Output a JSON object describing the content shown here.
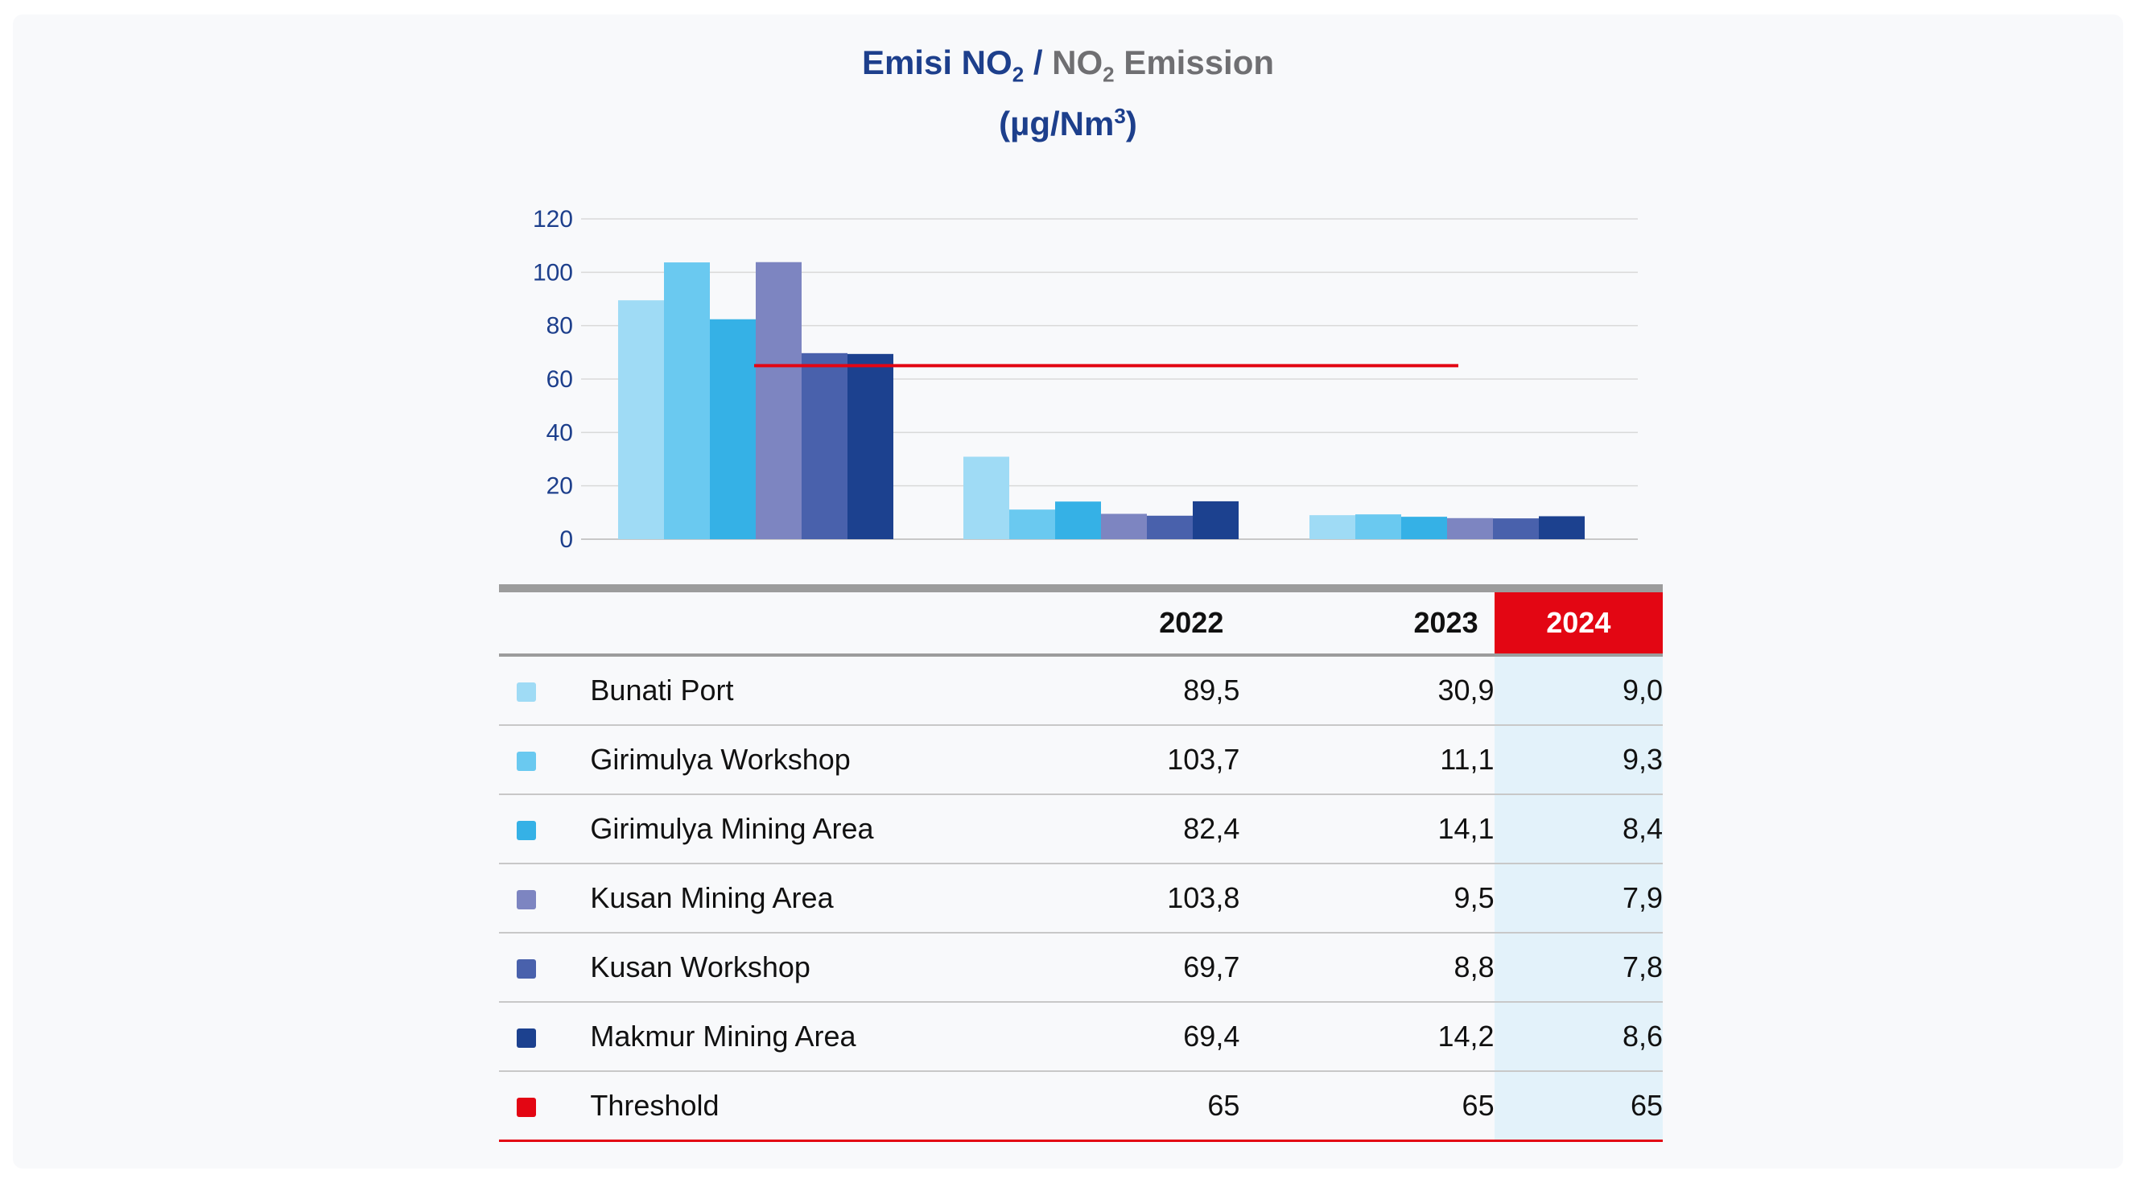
{
  "title": {
    "id_prefix": "Emisi NO",
    "id_sub": "2",
    "separator": " / ",
    "en_prefix": "NO",
    "en_sub": "2",
    "en_suffix": " Emission",
    "unit_prefix": "(µg/Nm",
    "unit_sup": "3",
    "unit_suffix": ")"
  },
  "chart_data": {
    "type": "bar",
    "categories": [
      "2022",
      "2023",
      "2024"
    ],
    "series": [
      {
        "name": "Bunati Port",
        "color": "#9fdbf5",
        "values": [
          89.5,
          30.9,
          9.0
        ]
      },
      {
        "name": "Girimulya Workshop",
        "color": "#6ac9f0",
        "values": [
          103.7,
          11.1,
          9.3
        ]
      },
      {
        "name": "Girimulya Mining Area",
        "color": "#35b1e6",
        "values": [
          82.4,
          14.1,
          8.4
        ]
      },
      {
        "name": "Kusan Mining Area",
        "color": "#7d85c1",
        "values": [
          103.8,
          9.5,
          7.9
        ]
      },
      {
        "name": "Kusan Workshop",
        "color": "#4961ac",
        "values": [
          69.7,
          8.8,
          7.8
        ]
      },
      {
        "name": "Makmur Mining Area",
        "color": "#1c418f",
        "values": [
          69.4,
          14.2,
          8.6
        ]
      }
    ],
    "threshold": {
      "name": "Threshold",
      "color": "#e30613",
      "value": 65
    },
    "ylim": [
      0,
      120
    ],
    "yticks": [
      "0",
      "20",
      "40",
      "60",
      "80",
      "100",
      "120"
    ],
    "grid": true
  },
  "table": {
    "headers": [
      "2022",
      "2023",
      "2024"
    ],
    "highlight_color": "#e30613",
    "rows": [
      {
        "label": "Bunati Port",
        "color": "#9fdbf5",
        "values": [
          "89,5",
          "30,9",
          "9,0"
        ]
      },
      {
        "label": "Girimulya Workshop",
        "color": "#6ac9f0",
        "values": [
          "103,7",
          "11,1",
          "9,3"
        ]
      },
      {
        "label": "Girimulya Mining Area",
        "color": "#35b1e6",
        "values": [
          "82,4",
          "14,1",
          "8,4"
        ]
      },
      {
        "label": "Kusan Mining Area",
        "color": "#7d85c1",
        "values": [
          "103,8",
          "9,5",
          "7,9"
        ]
      },
      {
        "label": "Kusan Workshop",
        "color": "#4961ac",
        "values": [
          "69,7",
          "8,8",
          "7,8"
        ]
      },
      {
        "label": "Makmur Mining Area",
        "color": "#1c418f",
        "values": [
          "69,4",
          "14,2",
          "8,6"
        ]
      },
      {
        "label": "Threshold",
        "color": "#e30613",
        "values": [
          "65",
          "65",
          "65"
        ]
      }
    ]
  }
}
